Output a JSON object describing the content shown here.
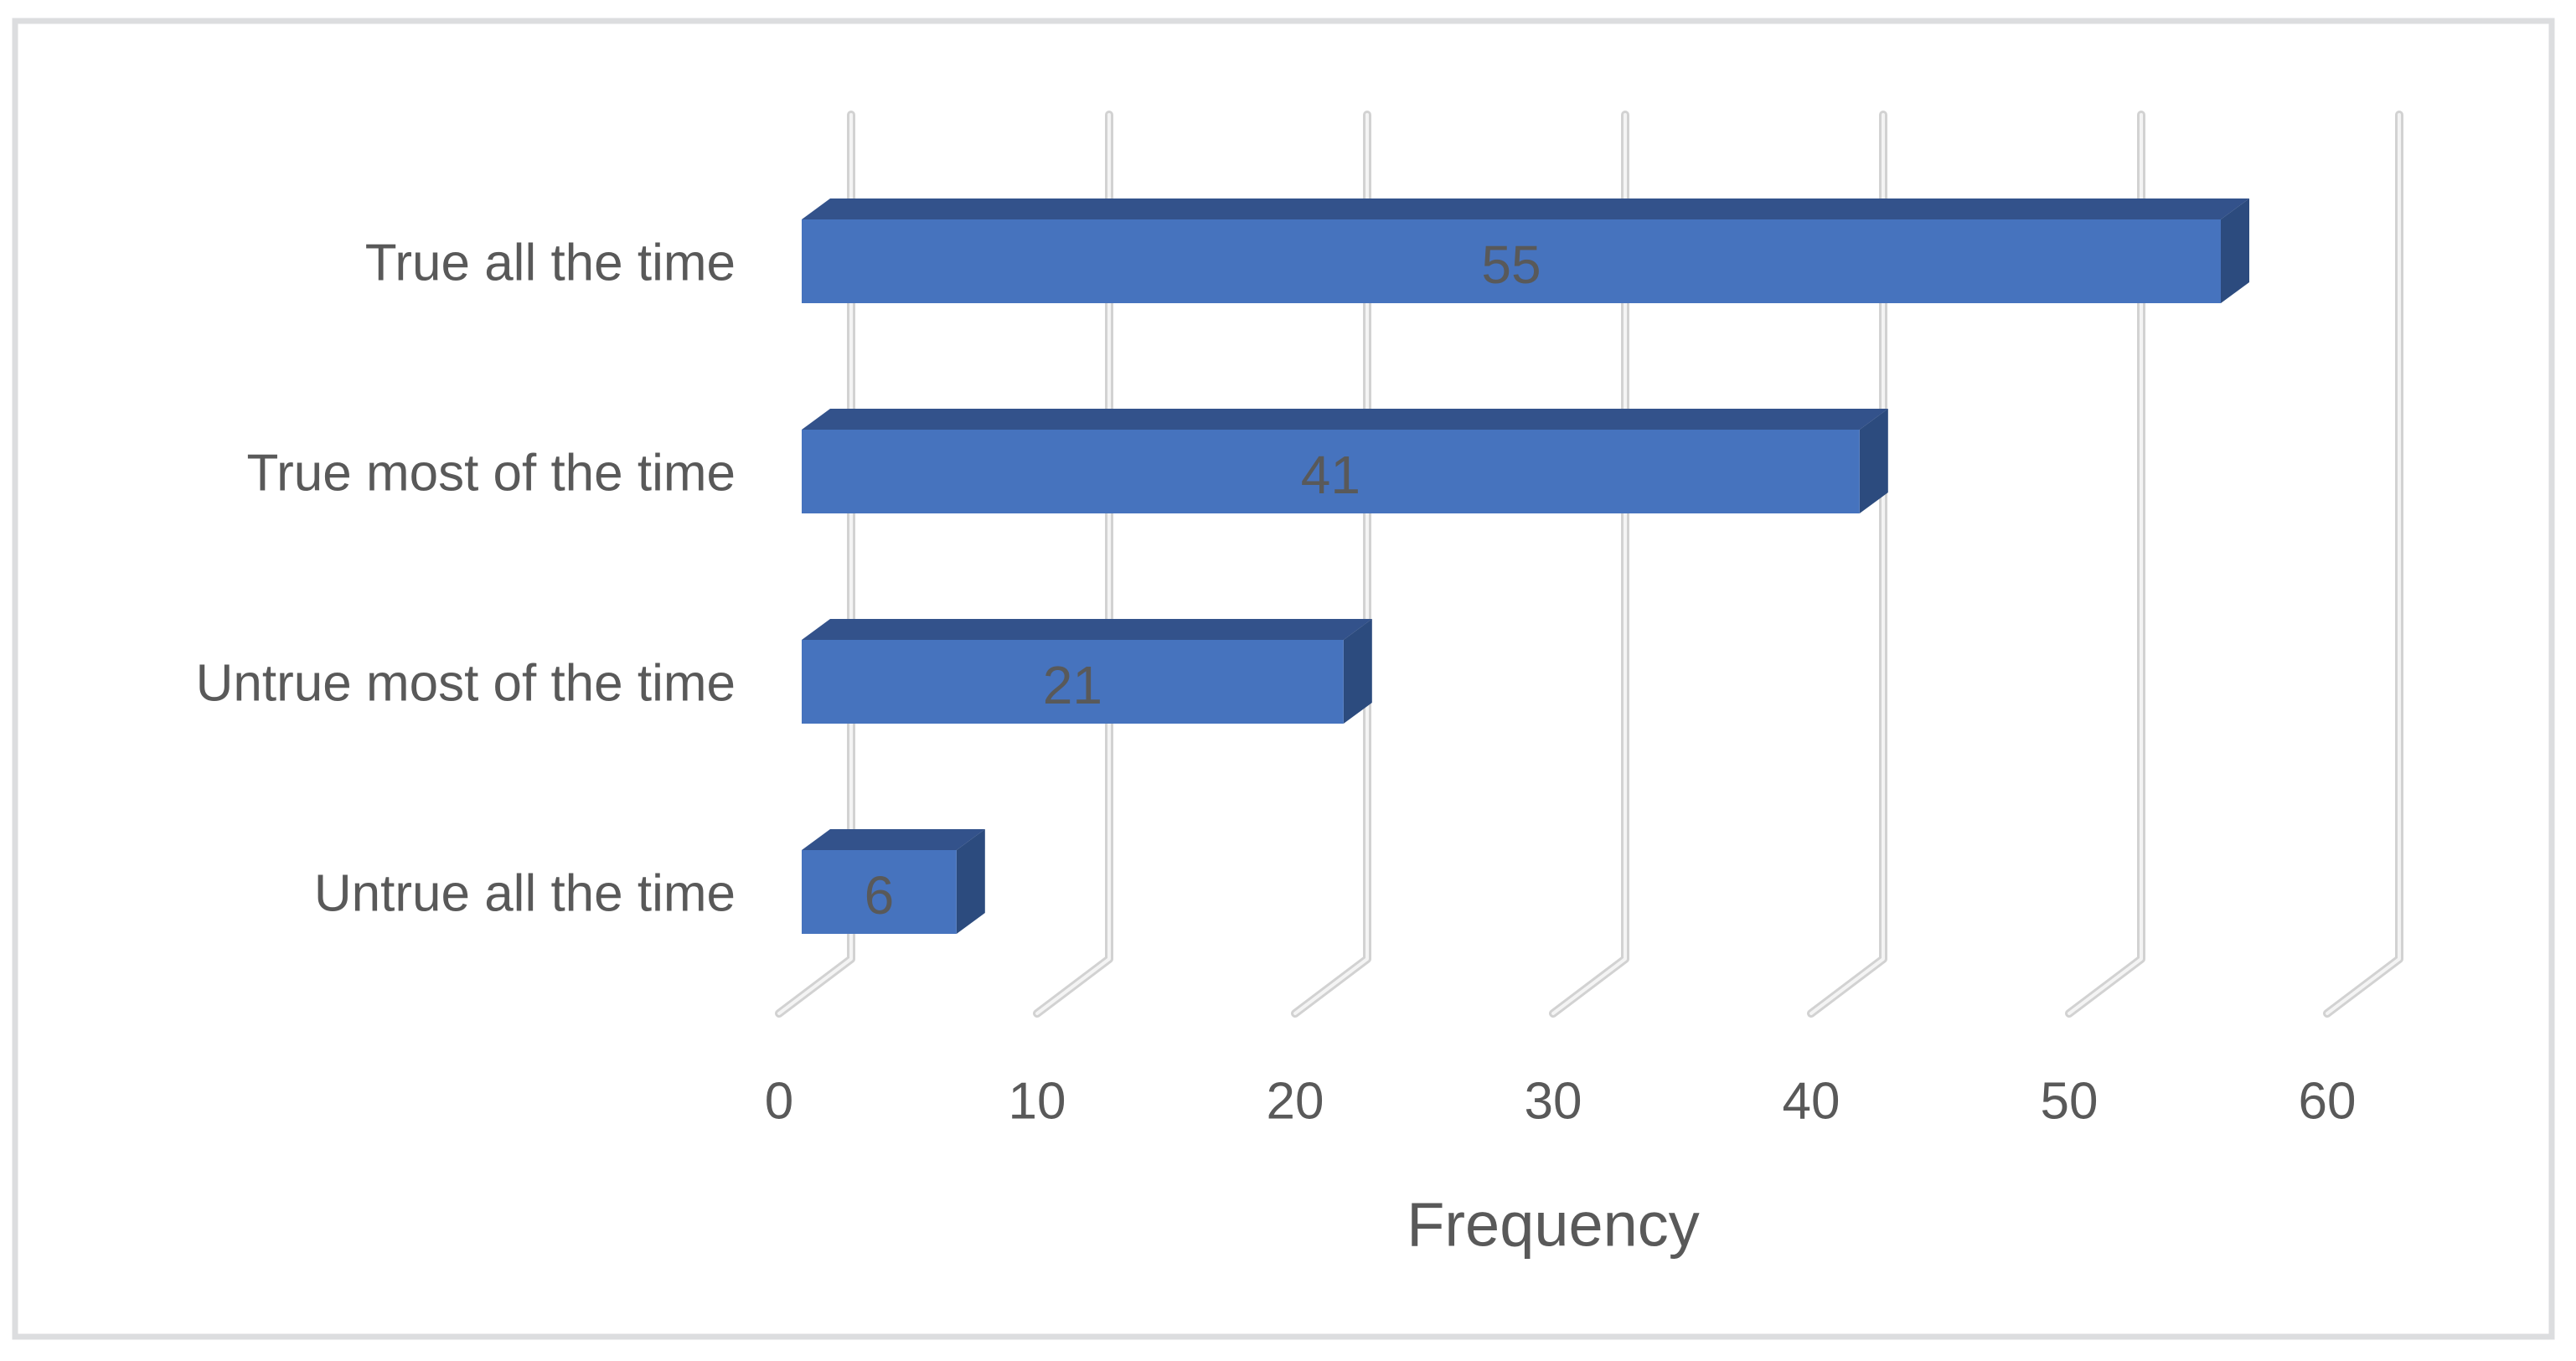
{
  "chart_data": {
    "type": "bar",
    "subtype": "3d-horizontal-bars",
    "title": "",
    "xlabel": "Frequency",
    "ylabel": "",
    "categories": [
      "True all the time",
      "True most of the time",
      "Untrue most of the time",
      "Untrue all the time"
    ],
    "values": [
      55,
      41,
      21,
      6
    ],
    "data_labels": [
      "55",
      "41",
      "21",
      "6"
    ],
    "x_ticks": [
      "0",
      "10",
      "20",
      "30",
      "40",
      "50",
      "60"
    ],
    "x_tick_values": [
      0,
      10,
      20,
      30,
      40,
      50,
      60
    ],
    "xlim": [
      0,
      65
    ],
    "grid": true,
    "legend": false,
    "colors": {
      "bar_front": "#4673BE",
      "bar_top": "#33528B",
      "bar_side": "#2C4B7E",
      "gridline": "#D2D2D2",
      "gridline_highlight": "#F4F4F4",
      "axis_text": "#595959",
      "data_label_text": "#595959",
      "axis_title_text": "#595959",
      "frame_border": "#DCDDDF",
      "background": "#FFFFFF"
    }
  }
}
